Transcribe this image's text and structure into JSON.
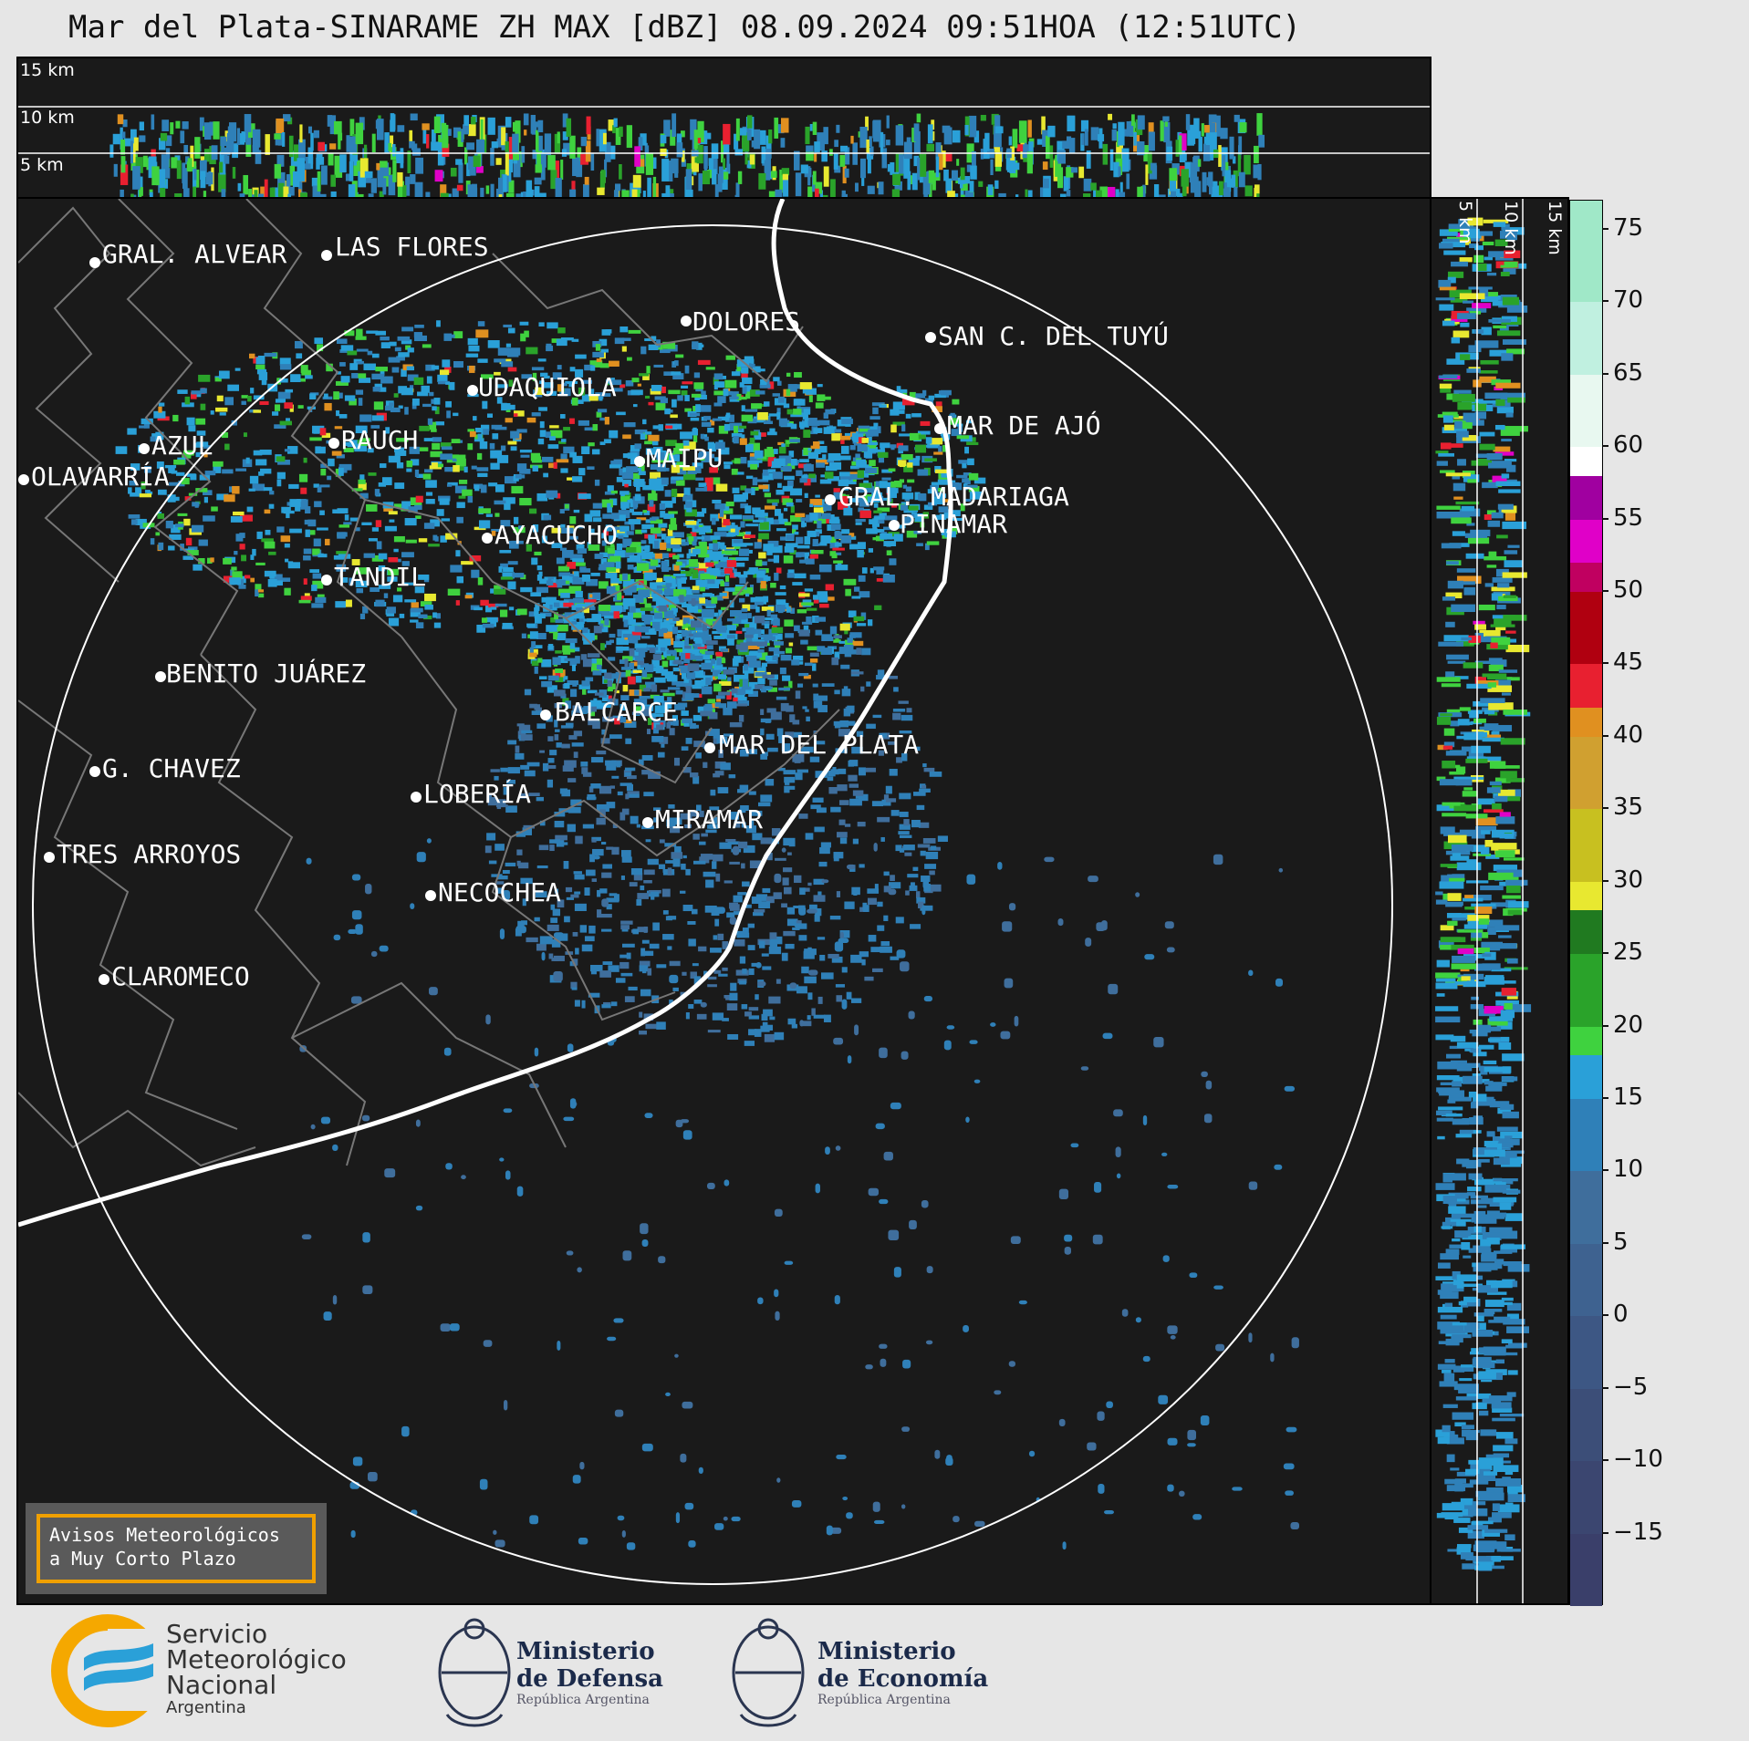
{
  "title": "Mar del Plata-SINARAME ZH MAX [dBZ] 08.09.2024 09:51HOA (12:51UTC)",
  "top_cross_section": {
    "levels": [
      "15 km",
      "10 km",
      "5 km"
    ]
  },
  "right_cross_section": {
    "levels": [
      "5 km",
      "10 km",
      "15 km"
    ]
  },
  "cities": [
    {
      "name": "GRAL. ALVEAR"
    },
    {
      "name": "LAS FLORES"
    },
    {
      "name": "DOLORES"
    },
    {
      "name": "SAN C. DEL TUYÚ"
    },
    {
      "name": "UDAQUIOLA"
    },
    {
      "name": "MAR DE AJÓ"
    },
    {
      "name": "AZUL"
    },
    {
      "name": "RAUCH"
    },
    {
      "name": "MAIPU"
    },
    {
      "name": "OLAVARRÍA"
    },
    {
      "name": "GRAL. MADARIAGA"
    },
    {
      "name": "PINAMAR"
    },
    {
      "name": "AYACUCHO"
    },
    {
      "name": "TANDIL"
    },
    {
      "name": "BENITO JUÁREZ"
    },
    {
      "name": "BALCARCE"
    },
    {
      "name": "MAR DEL PLATA"
    },
    {
      "name": "G. CHAVEZ"
    },
    {
      "name": "LOBERÍA"
    },
    {
      "name": "MIRAMAR"
    },
    {
      "name": "TRES ARROYOS"
    },
    {
      "name": "NECOCHEA"
    },
    {
      "name": "CLAROMECO"
    }
  ],
  "warning": {
    "line1": "Avisos Meteorológicos",
    "line2": "a Muy Corto Plazo"
  },
  "colorbar": {
    "ticks": [
      "75",
      "70",
      "65",
      "60",
      "55",
      "50",
      "45",
      "40",
      "35",
      "30",
      "25",
      "20",
      "15",
      "10",
      "5",
      "0",
      "−5",
      "−10",
      "−15"
    ],
    "colors": {
      "band_-20": "#3a3f6a",
      "band_-15": "#3b4670",
      "band_-10": "#3c4e78",
      "band_-5": "#3d5784",
      "band_0": "#3e6290",
      "band_5": "#3f6e9c",
      "band_10": "#2f80b8",
      "band_15": "#2aa0d8",
      "band_20": "#3fd23f",
      "band_25": "#2aa32a",
      "band_30": "#e8e830",
      "band_35": "#c8c020",
      "band_40": "#e09020",
      "band_45": "#e82030",
      "band_50": "#c00060",
      "band_55": "#e000c8",
      "band_60": "#ffffff",
      "band_65": "#c0f0e0",
      "band_70": "#a0e8c8"
    }
  },
  "footer": {
    "smn_line1": "Servicio",
    "smn_line2": "Meteorológico",
    "smn_line3": "Nacional",
    "smn_line4": "Argentina",
    "defensa_line1": "Ministerio",
    "defensa_line2": "de Defensa",
    "defensa_line3": "República Argentina",
    "economia_line1": "Ministerio",
    "economia_line2": "de Economía",
    "economia_line3": "República Argentina"
  }
}
